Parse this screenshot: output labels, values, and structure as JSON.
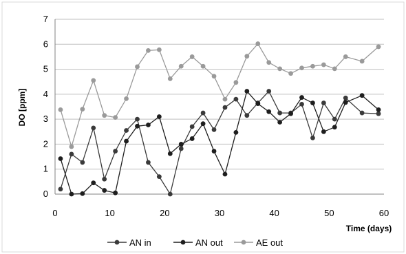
{
  "chart_data": {
    "type": "line",
    "xlabel": "Time (days)",
    "ylabel": "DO [ppm]",
    "xlim": [
      0,
      60
    ],
    "ylim": [
      0,
      7
    ],
    "xticks": [
      0,
      10,
      20,
      30,
      40,
      50,
      60
    ],
    "yticks": [
      0,
      1,
      2,
      3,
      4,
      5,
      6,
      7
    ],
    "grid": "horizontal",
    "legend_position": "bottom",
    "series": [
      {
        "name": "AN in",
        "color": "#3a3a3a",
        "points": [
          [
            1,
            0.2
          ],
          [
            3,
            1.6
          ],
          [
            5,
            1.27
          ],
          [
            7,
            2.65
          ],
          [
            9,
            0.6
          ],
          [
            11,
            1.72
          ],
          [
            13,
            2.55
          ],
          [
            15,
            3.0
          ],
          [
            17,
            1.27
          ],
          [
            19,
            0.7
          ],
          [
            21,
            0.0
          ],
          [
            23,
            1.82
          ],
          [
            25,
            2.7
          ],
          [
            27,
            3.25
          ],
          [
            29,
            2.58
          ],
          [
            31,
            3.47
          ],
          [
            33,
            3.8
          ],
          [
            35,
            3.15
          ],
          [
            37,
            3.65
          ],
          [
            39,
            4.12
          ],
          [
            41,
            3.25
          ],
          [
            43,
            3.25
          ],
          [
            45,
            3.6
          ],
          [
            47,
            2.25
          ],
          [
            49,
            3.65
          ],
          [
            51,
            3.0
          ],
          [
            53,
            3.85
          ],
          [
            56,
            3.25
          ],
          [
            59,
            3.22
          ]
        ]
      },
      {
        "name": "AN out",
        "color": "#1e1e1e",
        "points": [
          [
            1,
            1.42
          ],
          [
            3,
            0.0
          ],
          [
            5,
            0.02
          ],
          [
            7,
            0.45
          ],
          [
            9,
            0.15
          ],
          [
            11,
            0.05
          ],
          [
            13,
            2.12
          ],
          [
            15,
            2.72
          ],
          [
            17,
            2.77
          ],
          [
            19,
            3.1
          ],
          [
            21,
            1.62
          ],
          [
            23,
            2.0
          ],
          [
            25,
            2.22
          ],
          [
            27,
            2.82
          ],
          [
            29,
            1.72
          ],
          [
            31,
            0.8
          ],
          [
            33,
            2.47
          ],
          [
            35,
            4.12
          ],
          [
            37,
            3.62
          ],
          [
            39,
            3.3
          ],
          [
            41,
            2.88
          ],
          [
            43,
            3.22
          ],
          [
            45,
            3.87
          ],
          [
            47,
            3.65
          ],
          [
            49,
            2.5
          ],
          [
            51,
            2.68
          ],
          [
            53,
            3.67
          ],
          [
            56,
            3.95
          ],
          [
            59,
            3.38
          ]
        ]
      },
      {
        "name": "AE out",
        "color": "#9a9a9a",
        "points": [
          [
            1,
            3.38
          ],
          [
            3,
            1.9
          ],
          [
            5,
            3.4
          ],
          [
            7,
            4.55
          ],
          [
            9,
            3.15
          ],
          [
            11,
            3.07
          ],
          [
            13,
            3.82
          ],
          [
            15,
            5.1
          ],
          [
            17,
            5.75
          ],
          [
            19,
            5.78
          ],
          [
            21,
            4.62
          ],
          [
            23,
            5.12
          ],
          [
            25,
            5.5
          ],
          [
            27,
            5.12
          ],
          [
            29,
            4.72
          ],
          [
            31,
            3.8
          ],
          [
            33,
            4.47
          ],
          [
            35,
            5.52
          ],
          [
            37,
            6.02
          ],
          [
            39,
            5.27
          ],
          [
            41,
            5.02
          ],
          [
            43,
            4.83
          ],
          [
            45,
            5.05
          ],
          [
            47,
            5.12
          ],
          [
            49,
            5.18
          ],
          [
            51,
            5.02
          ],
          [
            53,
            5.5
          ],
          [
            56,
            5.32
          ],
          [
            59,
            5.9
          ]
        ]
      }
    ]
  }
}
